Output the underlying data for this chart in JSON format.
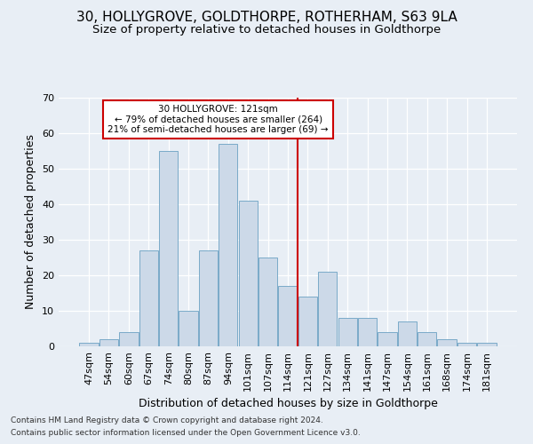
{
  "title": "30, HOLLYGROVE, GOLDTHORPE, ROTHERHAM, S63 9LA",
  "subtitle": "Size of property relative to detached houses in Goldthorpe",
  "xlabel": "Distribution of detached houses by size in Goldthorpe",
  "ylabel": "Number of detached properties",
  "footnote1": "Contains HM Land Registry data © Crown copyright and database right 2024.",
  "footnote2": "Contains public sector information licensed under the Open Government Licence v3.0.",
  "categories": [
    "47sqm",
    "54sqm",
    "60sqm",
    "67sqm",
    "74sqm",
    "80sqm",
    "87sqm",
    "94sqm",
    "101sqm",
    "107sqm",
    "114sqm",
    "121sqm",
    "127sqm",
    "134sqm",
    "141sqm",
    "147sqm",
    "154sqm",
    "161sqm",
    "168sqm",
    "174sqm",
    "181sqm"
  ],
  "values": [
    1,
    2,
    4,
    27,
    55,
    10,
    27,
    57,
    41,
    25,
    17,
    14,
    21,
    8,
    8,
    4,
    7,
    4,
    2,
    1,
    1
  ],
  "bar_color": "#ccd9e8",
  "bar_edge_color": "#7aaac8",
  "highlight_index": 11,
  "highlight_line_color": "#cc0000",
  "annotation_text": "30 HOLLYGROVE: 121sqm\n← 79% of detached houses are smaller (264)\n21% of semi-detached houses are larger (69) →",
  "annotation_box_facecolor": "#ffffff",
  "annotation_box_edgecolor": "#cc0000",
  "ylim": [
    0,
    70
  ],
  "yticks": [
    0,
    10,
    20,
    30,
    40,
    50,
    60,
    70
  ],
  "bg_color": "#e8eef5",
  "grid_color": "#ffffff",
  "title_fontsize": 11,
  "subtitle_fontsize": 9.5,
  "tick_fontsize": 8,
  "ylabel_fontsize": 9,
  "xlabel_fontsize": 9,
  "footnote_fontsize": 6.5
}
